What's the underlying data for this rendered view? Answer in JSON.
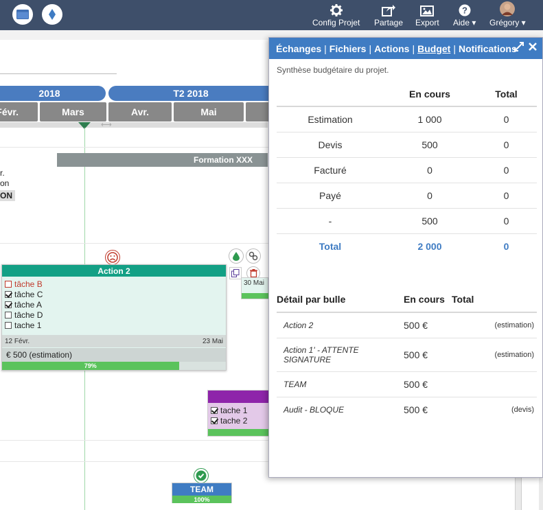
{
  "topbar": {
    "nav": [
      {
        "label": "Config Projet",
        "icon": "gear-icon"
      },
      {
        "label": "Partage",
        "icon": "share-icon"
      },
      {
        "label": "Export",
        "icon": "image-icon"
      },
      {
        "label": "Aide ▾",
        "icon": "help-icon"
      },
      {
        "label": "Grégory ▾",
        "icon": "avatar"
      }
    ]
  },
  "timeline": {
    "quarters": [
      "2018",
      "T2 2018"
    ],
    "months": [
      "Févr.",
      "Mars",
      "Avr.",
      "Mai"
    ],
    "formation": "Formation XXX",
    "left_clips": [
      "r.",
      "on",
      "ON"
    ]
  },
  "action2": {
    "title": "Action 2",
    "tasks": [
      {
        "label": "tâche B",
        "checked": false,
        "red": true
      },
      {
        "label": "tâche C",
        "checked": true,
        "red": false
      },
      {
        "label": "tâche A",
        "checked": true,
        "red": false
      },
      {
        "label": "tâche D",
        "checked": false,
        "red": false
      },
      {
        "label": "tache 1",
        "checked": false,
        "red": false
      }
    ],
    "start": "12 Févr.",
    "end": "23 Mai",
    "cost": "€  500 (estimation)",
    "progress_label": "79%",
    "progress": 0.79
  },
  "bubble30": {
    "label": "30 Mai"
  },
  "violet": {
    "tasks": [
      "tache 1",
      "tache 2"
    ]
  },
  "team": {
    "title": "TEAM",
    "progress": "100%"
  },
  "panel": {
    "tabs": [
      "Échanges",
      "Fichiers",
      "Actions",
      "Budget",
      "Notifications"
    ],
    "active_tab": "Budget",
    "subtitle": "Synthèse budgétaire du projet.",
    "summary": {
      "headers": [
        "",
        "En cours",
        "Total"
      ],
      "rows": [
        [
          "Estimation",
          "1 000",
          "0"
        ],
        [
          "Devis",
          "500",
          "0"
        ],
        [
          "Facturé",
          "0",
          "0"
        ],
        [
          "Payé",
          "0",
          "0"
        ],
        [
          "-",
          "500",
          "0"
        ]
      ],
      "total": [
        "Total",
        "2 000",
        "0"
      ]
    },
    "detail": {
      "headers": [
        "Détail par bulle",
        "En cours",
        "Total"
      ],
      "rows": [
        [
          "Action 2",
          "500 €",
          "(estimation)"
        ],
        [
          "Action 1' - ATTENTE SIGNATURE",
          "500 €",
          "(estimation)"
        ],
        [
          "TEAM",
          "500 €",
          ""
        ],
        [
          "Audit - BLOQUE",
          "500 €",
          "(devis)"
        ]
      ]
    }
  }
}
